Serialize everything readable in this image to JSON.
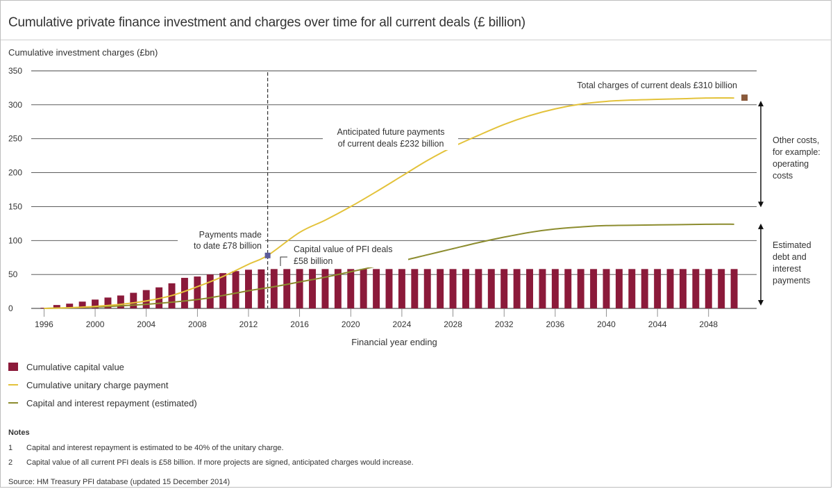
{
  "title": "Cumulative private finance investment and charges over time for all current deals (£ billion)",
  "chart_data": {
    "type": "bar",
    "ylabel": "Cumulative investment charges (£bn)",
    "xlabel": "Financial year ending",
    "ylim": [
      0,
      350
    ],
    "xlim": [
      1995,
      2051
    ],
    "yticks": [
      0,
      50,
      100,
      150,
      200,
      250,
      300,
      350
    ],
    "xticks": [
      1996,
      2000,
      2004,
      2008,
      2012,
      2016,
      2020,
      2024,
      2028,
      2032,
      2036,
      2040,
      2044,
      2048
    ],
    "grid": "horizontal",
    "legend_position": "bottom-left",
    "series": [
      {
        "name": "Cumulative capital value",
        "kind": "bar",
        "color": "#8b1a3a",
        "x": [
          1996,
          1997,
          1998,
          1999,
          2000,
          2001,
          2002,
          2003,
          2004,
          2005,
          2006,
          2007,
          2008,
          2009,
          2010,
          2011,
          2012,
          2013,
          2014,
          2015,
          2016,
          2017,
          2018,
          2019,
          2020,
          2021,
          2022,
          2023,
          2024,
          2025,
          2026,
          2027,
          2028,
          2029,
          2030,
          2031,
          2032,
          2033,
          2034,
          2035,
          2036,
          2037,
          2038,
          2039,
          2040,
          2041,
          2042,
          2043,
          2044,
          2045,
          2046,
          2047,
          2048,
          2049,
          2050
        ],
        "values": [
          1,
          5,
          7,
          10,
          13,
          16,
          19,
          23,
          27,
          31,
          37,
          45,
          47,
          50,
          52,
          55,
          57,
          57.5,
          58,
          58,
          58,
          58,
          58,
          58,
          58,
          58,
          58,
          58,
          58,
          58,
          58,
          58,
          58,
          58,
          58,
          58,
          58,
          58,
          58,
          58,
          58,
          58,
          58,
          58,
          58,
          58,
          58,
          58,
          58,
          58,
          58,
          58,
          58,
          58,
          58
        ]
      },
      {
        "name": "Cumulative unitary charge payment",
        "kind": "line",
        "color": "#e3c23a",
        "x": [
          1996,
          1998,
          2000,
          2002,
          2004,
          2006,
          2008,
          2010,
          2012,
          2013.5,
          2016,
          2018,
          2020,
          2022,
          2024,
          2026,
          2028,
          2030,
          2032,
          2034,
          2036,
          2038,
          2040,
          2042,
          2044,
          2046,
          2048,
          2050
        ],
        "values": [
          0,
          1,
          3,
          6,
          11,
          19,
          32,
          47,
          65,
          78,
          112,
          130,
          150,
          172,
          195,
          218,
          238,
          255,
          271,
          284,
          294,
          301,
          305,
          307,
          308,
          309,
          310,
          310
        ]
      },
      {
        "name": "Capital and interest repayment (estimated)",
        "kind": "line",
        "color": "#8c8c2e",
        "x": [
          1996,
          2000,
          2004,
          2008,
          2010,
          2012,
          2014,
          2016,
          2018,
          2020,
          2022,
          2024,
          2026,
          2028,
          2030,
          2032,
          2034,
          2036,
          2038,
          2040,
          2044,
          2048,
          2050
        ],
        "values": [
          0,
          2,
          6,
          13,
          19,
          26,
          32,
          39,
          46,
          54,
          62,
          70,
          79,
          88,
          97,
          105,
          112,
          117,
          120,
          122,
          123,
          124,
          124
        ]
      }
    ],
    "annotations": {
      "total_charges": "Total charges of current deals £310 billion",
      "future_payments_1": "Anticipated future payments",
      "future_payments_2": "of current deals £232 billion",
      "payments_made_1": "Payments made",
      "payments_made_2": "to date £78 billion",
      "capital_value_1": "Capital value of PFI deals",
      "capital_value_2": "£58 billion",
      "other_costs_1": "Other costs,",
      "other_costs_2": "for example:",
      "other_costs_3": "operating",
      "other_costs_4": "costs",
      "estimated_1": "Estimated",
      "estimated_2": "debt and",
      "estimated_3": "interest",
      "estimated_4": "payments"
    },
    "marker_colors": {
      "today": "#5b5b9a",
      "total": "#8a5a3b"
    }
  },
  "legend": [
    {
      "label": "Cumulative capital value",
      "color": "#8b1a3a",
      "kind": "bar"
    },
    {
      "label": "Cumulative unitary charge payment",
      "color": "#e3c23a",
      "kind": "line"
    },
    {
      "label": "Capital and interest repayment (estimated)",
      "color": "#8c8c2e",
      "kind": "line"
    }
  ],
  "notes": {
    "heading": "Notes",
    "items": [
      {
        "num": "1",
        "text": "Capital and interest repayment is estimated to be 40% of the unitary charge."
      },
      {
        "num": "2",
        "text": "Capital value of all current PFI deals is £58 billion. If more projects are signed, anticipated charges would increase."
      }
    ]
  },
  "source": "Source: HM Treasury PFI database (updated 15 December 2014)"
}
